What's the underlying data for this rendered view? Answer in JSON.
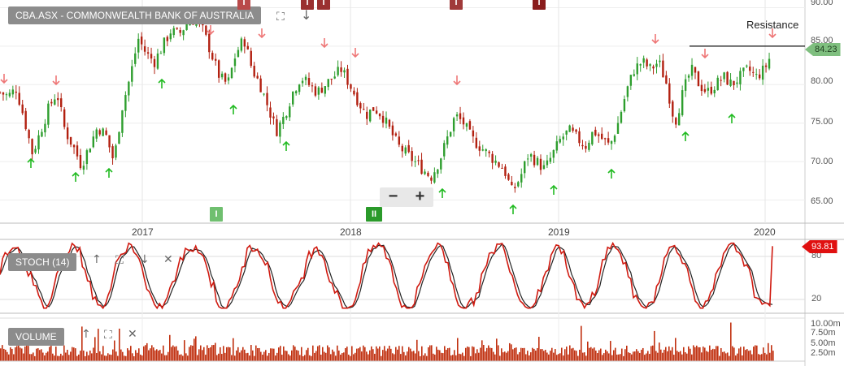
{
  "chart_title": "CBA.ASX - COMMONWEALTH BANK OF AUSTRALIA",
  "resistance_label": "Resistance",
  "last_price": "84.23",
  "stoch_label": "STOCH (14)",
  "stoch_value": "93.81",
  "volume_label": "VOLUME",
  "zoom": {
    "minus": "−",
    "plus": "+"
  },
  "event_marker": "I",
  "event_marker_double": "II",
  "price_axis": [
    "90.00",
    "85.00",
    "80.00",
    "75.00",
    "70.00",
    "65.00"
  ],
  "x_axis": [
    "2017",
    "2018",
    "2019",
    "2020"
  ],
  "stoch_axis": [
    "80",
    "20"
  ],
  "volume_axis": [
    "10.00m",
    "7.50m",
    "5.00m",
    "2.50m"
  ],
  "colors": {
    "up": "#2e9e2e",
    "down": "#b22010",
    "stoch_k": "#d01a10",
    "stoch_d": "#222222",
    "volume": "#c0300f",
    "buy_arrow": "#22bb22",
    "sell_arrow": "#ee7777"
  },
  "chart_data": {
    "type": "candlestick",
    "y_range": [
      62,
      91
    ],
    "x_labels": [
      "2017",
      "2018",
      "2019",
      "2020"
    ],
    "resistance": 85,
    "last_close": 84.23,
    "close_path": [
      [
        0,
        79
      ],
      [
        0.01,
        78.5
      ],
      [
        0.02,
        79.5
      ],
      [
        0.03,
        75.5
      ],
      [
        0.04,
        71
      ],
      [
        0.05,
        74
      ],
      [
        0.06,
        77
      ],
      [
        0.07,
        79
      ],
      [
        0.08,
        74
      ],
      [
        0.09,
        72
      ],
      [
        0.1,
        69.5
      ],
      [
        0.11,
        72
      ],
      [
        0.12,
        74.5
      ],
      [
        0.13,
        73.5
      ],
      [
        0.14,
        70
      ],
      [
        0.15,
        77
      ],
      [
        0.16,
        81
      ],
      [
        0.17,
        86
      ],
      [
        0.18,
        84
      ],
      [
        0.19,
        83
      ],
      [
        0.2,
        85
      ],
      [
        0.21,
        87
      ],
      [
        0.22,
        86.5
      ],
      [
        0.23,
        88
      ],
      [
        0.24,
        88.5
      ],
      [
        0.25,
        87
      ],
      [
        0.26,
        84
      ],
      [
        0.27,
        81
      ],
      [
        0.28,
        80
      ],
      [
        0.29,
        84
      ],
      [
        0.3,
        86
      ],
      [
        0.31,
        82
      ],
      [
        0.32,
        80
      ],
      [
        0.33,
        77
      ],
      [
        0.34,
        74
      ],
      [
        0.35,
        76
      ],
      [
        0.36,
        79
      ],
      [
        0.37,
        81
      ],
      [
        0.38,
        80
      ],
      [
        0.39,
        79
      ],
      [
        0.4,
        80
      ],
      [
        0.41,
        81
      ],
      [
        0.42,
        82
      ],
      [
        0.43,
        80
      ],
      [
        0.44,
        78
      ],
      [
        0.45,
        76
      ],
      [
        0.46,
        77
      ],
      [
        0.47,
        76
      ],
      [
        0.48,
        74
      ],
      [
        0.49,
        72
      ],
      [
        0.5,
        71
      ],
      [
        0.51,
        70
      ],
      [
        0.52,
        69
      ],
      [
        0.53,
        68
      ],
      [
        0.54,
        70
      ],
      [
        0.55,
        73
      ],
      [
        0.56,
        76
      ],
      [
        0.57,
        75
      ],
      [
        0.58,
        73
      ],
      [
        0.59,
        72
      ],
      [
        0.6,
        71
      ],
      [
        0.61,
        70
      ],
      [
        0.62,
        69
      ],
      [
        0.63,
        66
      ],
      [
        0.64,
        68
      ],
      [
        0.65,
        71
      ],
      [
        0.66,
        70
      ],
      [
        0.67,
        69
      ],
      [
        0.68,
        71
      ],
      [
        0.69,
        73
      ],
      [
        0.7,
        74
      ],
      [
        0.71,
        73
      ],
      [
        0.72,
        72
      ],
      [
        0.73,
        74
      ],
      [
        0.74,
        73
      ],
      [
        0.75,
        72
      ],
      [
        0.76,
        75
      ],
      [
        0.77,
        79
      ],
      [
        0.78,
        82
      ],
      [
        0.79,
        83
      ],
      [
        0.8,
        82
      ],
      [
        0.81,
        83
      ],
      [
        0.82,
        80
      ],
      [
        0.83,
        75
      ],
      [
        0.84,
        79
      ],
      [
        0.85,
        82
      ],
      [
        0.86,
        80
      ],
      [
        0.87,
        79
      ],
      [
        0.88,
        80
      ],
      [
        0.89,
        81
      ],
      [
        0.9,
        80
      ],
      [
        0.91,
        81
      ],
      [
        0.92,
        82
      ],
      [
        0.93,
        81
      ],
      [
        0.94,
        82
      ],
      [
        0.95,
        84.23
      ]
    ]
  }
}
